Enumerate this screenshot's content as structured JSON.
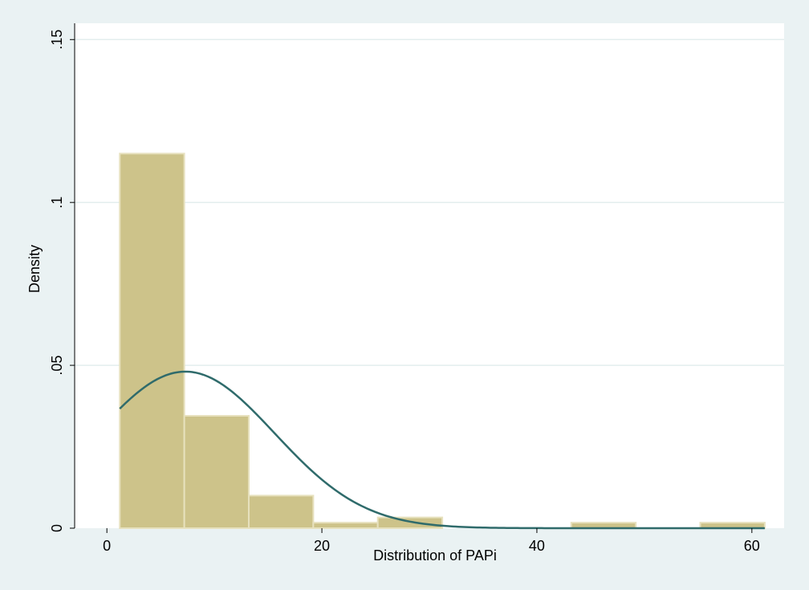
{
  "chart_data": {
    "type": "bar",
    "subtype": "histogram",
    "xlabel": "Distribution of PAPi",
    "ylabel": "Density",
    "xlim": [
      -3,
      63
    ],
    "ylim": [
      0,
      0.155
    ],
    "x_ticks": [
      0,
      20,
      40,
      60
    ],
    "x_tick_labels": [
      "0",
      "20",
      "40",
      "60"
    ],
    "y_ticks": [
      0,
      0.05,
      0.1,
      0.15
    ],
    "y_tick_labels": [
      "0",
      ".05",
      ".1",
      ".15"
    ],
    "grid": true,
    "bins": [
      {
        "x0": 1.2,
        "x1": 7.2,
        "density": 0.115
      },
      {
        "x0": 7.2,
        "x1": 13.2,
        "density": 0.0345
      },
      {
        "x0": 13.2,
        "x1": 19.2,
        "density": 0.01
      },
      {
        "x0": 19.2,
        "x1": 25.2,
        "density": 0.0017
      },
      {
        "x0": 25.2,
        "x1": 31.2,
        "density": 0.0033
      },
      {
        "x0": 43.2,
        "x1": 49.2,
        "density": 0.0017
      },
      {
        "x0": 55.2,
        "x1": 61.2,
        "density": 0.0017
      }
    ],
    "normal_curve": {
      "mean": 7.3,
      "sd": 8.3,
      "x_start": 1.2,
      "x_end": 61.2
    },
    "colors": {
      "background": "#eaf2f3",
      "plot_background": "#ffffff",
      "bar_fill": "#cdc38a",
      "bar_stroke": "#e7e1be",
      "curve": "#2f6b6b",
      "grid": "#e3eeee"
    }
  }
}
